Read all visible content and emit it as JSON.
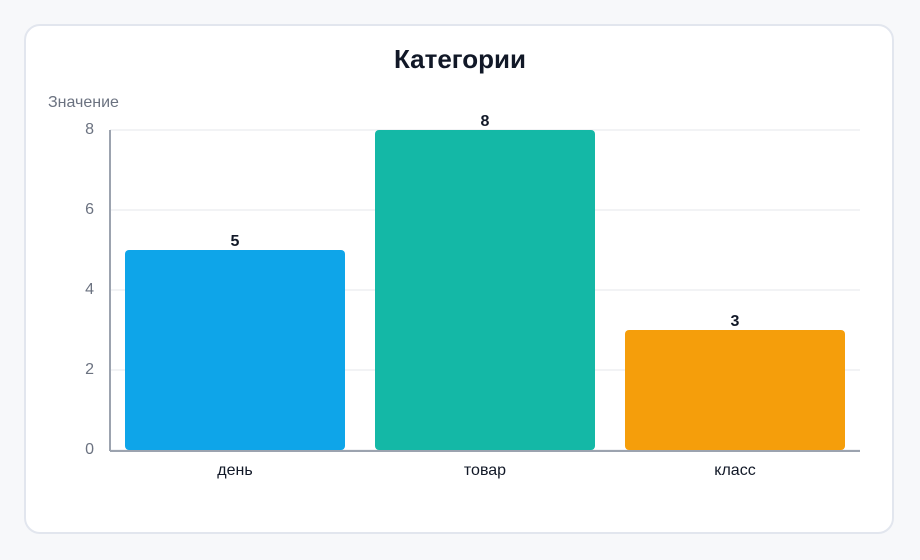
{
  "chart_data": {
    "type": "bar",
    "title": "Категории",
    "y_label": "Значение",
    "categories": [
      "день",
      "товар",
      "класс"
    ],
    "values": [
      5,
      8,
      3
    ],
    "colors": [
      "#0ea5e9",
      "#14b8a6",
      "#f59e0b"
    ],
    "ylim": [
      0,
      8
    ],
    "yticks": [
      0,
      2,
      4,
      6,
      8
    ],
    "grid": true
  }
}
